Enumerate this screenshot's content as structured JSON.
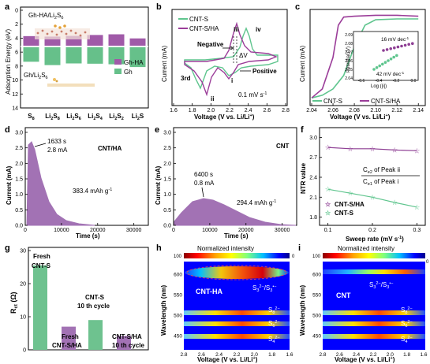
{
  "panels": {
    "a": {
      "letter": "a",
      "ylabel": "Adsorption Energy (eV)",
      "categories": [
        "S8",
        "Li2S8",
        "Li2S6",
        "Li2S4",
        "Li2S2",
        "Li2S"
      ],
      "cat_labels": [
        {
          "base": "S",
          "sub": "8"
        },
        {
          "base": "Li",
          "sub": "2",
          "base2": "S",
          "sub2": "8"
        },
        {
          "base": "Li",
          "sub": "2",
          "base2": "S",
          "sub2": "6"
        },
        {
          "base": "Li",
          "sub": "2",
          "base2": "S",
          "sub2": "4"
        },
        {
          "base": "Li",
          "sub": "2",
          "base2": "S",
          "sub2": "2"
        },
        {
          "base": "Li",
          "sub": "2",
          "base2": "S",
          "sub2": ""
        }
      ],
      "ticks": [
        "0",
        "2",
        "4",
        "6",
        "8",
        "10",
        "12",
        "14"
      ],
      "inset_top": "Gh-HA/Li",
      "inset_top_sub": "2",
      "inset_top_tail": "S",
      "inset_top_sub2": "6",
      "inset_bottom": "Gh/Li",
      "inset_bottom_sub": "2",
      "inset_bottom_tail": "S",
      "inset_bottom_sub2": "6",
      "legend": [
        "Gh-HA",
        "Gh"
      ],
      "colors": {
        "gh_ha": "#a05aa8",
        "gh": "#66c08a"
      }
    },
    "b": {
      "letter": "b",
      "xlabel": "Voltage (V vs. Li/Li",
      "xlabel_sup": "+",
      "xlabel_tail": ")",
      "ylabel": "Current (mA)",
      "xticks": [
        "1.6",
        "1.8",
        "2.0",
        "2.2",
        "2.4",
        "2.6",
        "2.8"
      ],
      "legend": [
        "CNT-S",
        "CNT-S/HA"
      ],
      "annotations": {
        "iii": "iii",
        "iv": "iv",
        "ii": "ii",
        "i": "i",
        "negative": "Negative",
        "positive": "Positive",
        "dv": "ΔV",
        "cycle": "3rd",
        "rate": "0.1 mV s"
      },
      "rate_sup": "-1"
    },
    "c": {
      "letter": "c",
      "xlabel": "Voltage (V vs. Li/Li",
      "xlabel_sup": "+",
      "xlabel_tail": ")",
      "ylabel": "Current (mA)",
      "xticks": [
        "2.04",
        "2.06",
        "2.08",
        "2.10",
        "2.12",
        "2.14"
      ],
      "legend": [
        "CNT-S",
        "CNT-S/HA"
      ],
      "inset": {
        "ylabel": "Potential (V)",
        "xlabel": "Log (|i|)",
        "yticks": [
          "2.09",
          "2.08",
          "2.07",
          "2.06",
          "2.05",
          "2.04"
        ],
        "xticks": [
          "-0.6",
          "-0.4",
          "-0.2",
          "0.0"
        ],
        "slope1": "16 mV dec",
        "slope2": "42 mV dec",
        "sup": "-1"
      }
    },
    "d": {
      "letter": "d",
      "title": "CNT/HA",
      "ylabel": "Current (mA)",
      "xlabel": "Time (s)",
      "yticks": [
        "0.0",
        "0.5",
        "1.0",
        "1.5",
        "2.0",
        "2.5",
        "3.0"
      ],
      "xticks": [
        "0",
        "10000",
        "20000",
        "30000"
      ],
      "peak_time": "1633 s",
      "peak_current": "2.8 mA",
      "capacity": "383.4 mAh g",
      "cap_sup": "-1"
    },
    "e": {
      "letter": "e",
      "title": "CNT",
      "ylabel": "Current (mA)",
      "xlabel": "Time (s)",
      "yticks": [
        "0.0",
        "0.5",
        "1.0",
        "1.5",
        "2.0",
        "2.5",
        "3.0"
      ],
      "xticks": [
        "0",
        "10000",
        "20000",
        "30000"
      ],
      "peak_time": "6400 s",
      "peak_current": "0.8 mA",
      "capacity": "294.4 mAh g",
      "cap_sup": "-1"
    },
    "f": {
      "letter": "f",
      "ylabel": "NTR value",
      "xlabel": "Sweep rate (mV s",
      "xlabel_sup": "-1",
      "xlabel_tail": ")",
      "yticks": [
        "1.8",
        "2.1",
        "2.4",
        "2.7",
        "3.0"
      ],
      "xticks": [
        "0.1",
        "0.2",
        "0.3"
      ],
      "frac_num": "C",
      "frac_num_sub": "e2",
      "frac_num_tail": " of Peak ii",
      "frac_den": "C",
      "frac_den_sub": "e1",
      "frac_den_tail": " of Peak  i",
      "legend": [
        "CNT-S/HA",
        "CNT-S"
      ]
    },
    "g": {
      "letter": "g",
      "ylabel": "R",
      "ylabel_sub": "ct",
      "ylabel_tail": " (Ω)",
      "yticks": [
        "0",
        "10",
        "20",
        "30"
      ],
      "labels": {
        "fresh_cnt_1": "Fresh",
        "fresh_cnt_2": "CNT-S",
        "fresh_ha_1": "Fresh",
        "fresh_ha_2": "CNT-S/HA",
        "cyc_cnt_1": "CNT-S",
        "cyc_cnt_2": "10 th cycle",
        "cyc_ha_1": "CNT-S/HA",
        "cyc_ha_2": "10 th cycle"
      }
    },
    "h": {
      "letter": "h",
      "title": "Normalized intensity",
      "label": "CNT-HA",
      "ylabel": "Wavelength (nm)",
      "xlabel": "Voltage (V vs. Li/Li",
      "xlabel_sup": "+",
      "xlabel_tail": ")",
      "scale_min": "0",
      "scale_max": "100",
      "yticks": [
        "600",
        "550",
        "500",
        "450"
      ],
      "xticks": [
        "2.8",
        "2.6",
        "2.4",
        "2.2",
        "2.0",
        "1.8",
        "1.6"
      ]
    },
    "i": {
      "letter": "i",
      "title": "Normalized intensity",
      "label": "CNT",
      "ylabel": "Wavelength (nm)",
      "xlabel": "Voltage (V vs. Li/Li",
      "xlabel_sup": "+",
      "xlabel_tail": ")",
      "scale_min": "0",
      "scale_max": "100",
      "yticks": [
        "600",
        "550",
        "500",
        "450"
      ],
      "xticks": [
        "2.8",
        "2.6",
        "2.4",
        "2.2",
        "2.0",
        "1.8",
        "1.6"
      ]
    }
  },
  "chart_data": [
    {
      "panel": "a",
      "type": "bar",
      "categories": [
        "S8",
        "Li2S8",
        "Li2S6",
        "Li2S4",
        "Li2S2",
        "Li2S"
      ],
      "series": [
        {
          "name": "Gh-HA",
          "values": [
            4.2,
            4.0,
            4.3,
            4.7,
            5.0,
            3.2
          ]
        },
        {
          "name": "Gh",
          "values": [
            5.2,
            6.4,
            5.8,
            5.9,
            6.1,
            7.1
          ]
        }
      ],
      "ylabel": "Adsorption Energy (eV)",
      "ylim": [
        0,
        14
      ]
    },
    {
      "panel": "c",
      "type": "line",
      "series": [
        {
          "name": "CNT-S",
          "x": [
            2.04,
            2.05,
            2.06,
            2.07,
            2.08,
            2.09,
            2.1,
            2.12,
            2.14
          ],
          "y": [
            0.05,
            0.08,
            0.15,
            0.3,
            0.62,
            0.86,
            0.92,
            0.93,
            0.93
          ]
        },
        {
          "name": "CNT-S/HA",
          "x": [
            2.04,
            2.05,
            2.06,
            2.065,
            2.07,
            2.08,
            2.1,
            2.12,
            2.14
          ],
          "y": [
            0.05,
            0.15,
            0.5,
            0.86,
            0.95,
            0.96,
            0.97,
            0.97,
            0.96
          ]
        }
      ],
      "xlabel": "Voltage (V vs. Li/Li+)",
      "ylabel": "Current (mA)"
    },
    {
      "panel": "f",
      "type": "line",
      "x": [
        0.1,
        0.15,
        0.2,
        0.25,
        0.3
      ],
      "series": [
        {
          "name": "CNT-S/HA",
          "values": [
            2.85,
            2.83,
            2.83,
            2.81,
            2.8
          ]
        },
        {
          "name": "CNT-S",
          "values": [
            2.22,
            2.16,
            2.1,
            2.02,
            1.95
          ]
        }
      ],
      "xlabel": "Sweep rate (mV s-1)",
      "ylabel": "NTR value",
      "ylim": [
        1.7,
        3.1
      ]
    },
    {
      "panel": "g",
      "type": "bar",
      "categories": [
        "Fresh CNT-S",
        "Fresh CNT-S/HA",
        "CNT-S 10 th cycle",
        "CNT-S/HA 10 th cycle"
      ],
      "values": [
        25.5,
        7.0,
        9.0,
        4.2
      ],
      "ylim": [
        0,
        30
      ]
    }
  ]
}
